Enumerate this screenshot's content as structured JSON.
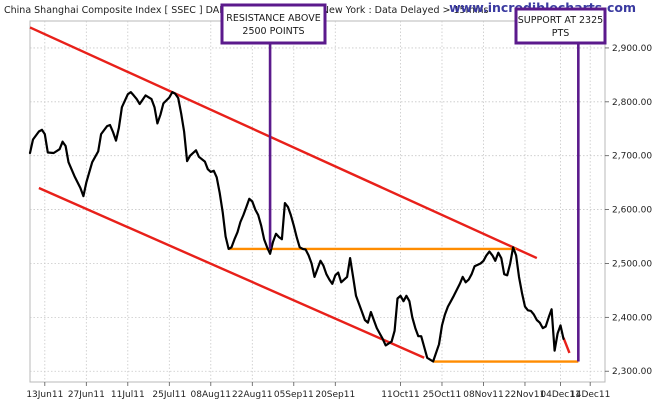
{
  "header": {
    "title": "China Shanghai Composite Index [ SSEC ] DAILY:02Dec2011 18:30 New York : Data Delayed > 15mins",
    "watermark": "www.incrediblecharts.com"
  },
  "annotations": {
    "resistance_line1": "RESISTANCE ABOVE",
    "resistance_line2": "2500 POINTS",
    "support_line1": "SUPPORT AT 2325",
    "support_line2": "PTS"
  },
  "colors": {
    "price": "#000000",
    "trendline": "#e8201a",
    "level": "#ff8c00",
    "annotation": "#5b1a8c",
    "grid": "#c8c8c8",
    "watermark": "#3a3aa0"
  },
  "chart_data": {
    "type": "line",
    "title": "China Shanghai Composite Index [ SSEC ] DAILY:02Dec2011 18:30 New York : Data Delayed > 15mins",
    "xlabel": "",
    "ylabel": "",
    "ylim": [
      2280,
      2950
    ],
    "y_ticks": [
      2300,
      2400,
      2500,
      2600,
      2700,
      2800,
      2900
    ],
    "y_tick_labels": [
      "2,300.00",
      "2,400.00",
      "2,500.00",
      "2,600.00",
      "2,700.00",
      "2,800.00",
      "2,900.00"
    ],
    "x_range": [
      "2011-06-08",
      "2011-12-19"
    ],
    "x_ticks": [
      "2011-06-13",
      "2011-06-27",
      "2011-07-11",
      "2011-07-25",
      "2011-08-08",
      "2011-08-22",
      "2011-09-05",
      "2011-09-19",
      "2011-10-11",
      "2011-10-25",
      "2011-11-08",
      "2011-11-22",
      "2011-12-04",
      "2011-12-14"
    ],
    "x_tick_labels": [
      "13Jun11",
      "27Jun11",
      "11Jul11",
      "25Jul11",
      "08Aug11",
      "22Aug11",
      "05Sep11",
      "20Sep11",
      "11Oct11",
      "25Oct11",
      "08Nov11",
      "22Nov11",
      "04Dec11",
      "14Dec11"
    ],
    "grid": true,
    "series": [
      {
        "points": [
          [
            "2011-06-08",
            2705
          ],
          [
            "2011-06-09",
            2730
          ],
          [
            "2011-06-11",
            2745
          ],
          [
            "2011-06-12",
            2748
          ],
          [
            "2011-06-13",
            2740
          ],
          [
            "2011-06-14",
            2706
          ],
          [
            "2011-06-16",
            2705
          ],
          [
            "2011-06-18",
            2712
          ],
          [
            "2011-06-19",
            2726
          ],
          [
            "2011-06-20",
            2718
          ],
          [
            "2011-06-21",
            2688
          ],
          [
            "2011-06-23",
            2662
          ],
          [
            "2011-06-25",
            2640
          ],
          [
            "2011-06-26",
            2625
          ],
          [
            "2011-06-27",
            2650
          ],
          [
            "2011-06-29",
            2688
          ],
          [
            "2011-07-01",
            2708
          ],
          [
            "2011-07-02",
            2740
          ],
          [
            "2011-07-04",
            2755
          ],
          [
            "2011-07-05",
            2757
          ],
          [
            "2011-07-06",
            2744
          ],
          [
            "2011-07-07",
            2728
          ],
          [
            "2011-07-08",
            2752
          ],
          [
            "2011-07-09",
            2790
          ],
          [
            "2011-07-11",
            2814
          ],
          [
            "2011-07-12",
            2818
          ],
          [
            "2011-07-13",
            2812
          ],
          [
            "2011-07-14",
            2805
          ],
          [
            "2011-07-15",
            2796
          ],
          [
            "2011-07-16",
            2804
          ],
          [
            "2011-07-17",
            2812
          ],
          [
            "2011-07-19",
            2805
          ],
          [
            "2011-07-20",
            2790
          ],
          [
            "2011-07-21",
            2760
          ],
          [
            "2011-07-22",
            2776
          ],
          [
            "2011-07-23",
            2797
          ],
          [
            "2011-07-25",
            2808
          ],
          [
            "2011-07-26",
            2818
          ],
          [
            "2011-07-27",
            2815
          ],
          [
            "2011-07-28",
            2807
          ],
          [
            "2011-07-29",
            2778
          ],
          [
            "2011-07-30",
            2745
          ],
          [
            "2011-07-31",
            2690
          ],
          [
            "2011-08-01",
            2700
          ],
          [
            "2011-08-03",
            2710
          ],
          [
            "2011-08-04",
            2698
          ],
          [
            "2011-08-06",
            2689
          ],
          [
            "2011-08-07",
            2675
          ],
          [
            "2011-08-08",
            2670
          ],
          [
            "2011-08-09",
            2672
          ],
          [
            "2011-08-10",
            2660
          ],
          [
            "2011-08-11",
            2631
          ],
          [
            "2011-08-12",
            2595
          ],
          [
            "2011-08-13",
            2550
          ],
          [
            "2011-08-14",
            2527
          ],
          [
            "2011-08-15",
            2530
          ],
          [
            "2011-08-16",
            2545
          ],
          [
            "2011-08-17",
            2558
          ],
          [
            "2011-08-18",
            2577
          ],
          [
            "2011-08-19",
            2590
          ],
          [
            "2011-08-20",
            2605
          ],
          [
            "2011-08-21",
            2620
          ],
          [
            "2011-08-22",
            2615
          ],
          [
            "2011-08-23",
            2600
          ],
          [
            "2011-08-24",
            2590
          ],
          [
            "2011-08-25",
            2570
          ],
          [
            "2011-08-26",
            2545
          ],
          [
            "2011-08-27",
            2530
          ],
          [
            "2011-08-28",
            2518
          ],
          [
            "2011-08-29",
            2540
          ],
          [
            "2011-08-30",
            2555
          ],
          [
            "2011-08-31",
            2549
          ],
          [
            "2011-09-01",
            2545
          ],
          [
            "2011-09-02",
            2612
          ],
          [
            "2011-09-03",
            2605
          ],
          [
            "2011-09-04",
            2590
          ],
          [
            "2011-09-05",
            2570
          ],
          [
            "2011-09-06",
            2548
          ],
          [
            "2011-09-07",
            2530
          ],
          [
            "2011-09-08",
            2527
          ],
          [
            "2011-09-09",
            2526
          ],
          [
            "2011-09-10",
            2515
          ],
          [
            "2011-09-11",
            2500
          ],
          [
            "2011-09-12",
            2475
          ],
          [
            "2011-09-13",
            2490
          ],
          [
            "2011-09-14",
            2505
          ],
          [
            "2011-09-15",
            2496
          ],
          [
            "2011-09-16",
            2480
          ],
          [
            "2011-09-17",
            2470
          ],
          [
            "2011-09-18",
            2462
          ],
          [
            "2011-09-19",
            2478
          ],
          [
            "2011-09-20",
            2483
          ],
          [
            "2011-09-21",
            2465
          ],
          [
            "2011-09-22",
            2470
          ],
          [
            "2011-09-23",
            2475
          ],
          [
            "2011-09-24",
            2510
          ],
          [
            "2011-09-25",
            2475
          ],
          [
            "2011-09-26",
            2440
          ],
          [
            "2011-09-27",
            2425
          ],
          [
            "2011-09-28",
            2410
          ],
          [
            "2011-09-29",
            2395
          ],
          [
            "2011-09-30",
            2390
          ],
          [
            "2011-10-01",
            2410
          ],
          [
            "2011-10-02",
            2395
          ],
          [
            "2011-10-03",
            2380
          ],
          [
            "2011-10-05",
            2360
          ],
          [
            "2011-10-06",
            2348
          ],
          [
            "2011-10-08",
            2355
          ],
          [
            "2011-10-09",
            2375
          ],
          [
            "2011-10-10",
            2435
          ],
          [
            "2011-10-11",
            2440
          ],
          [
            "2011-10-12",
            2430
          ],
          [
            "2011-10-13",
            2440
          ],
          [
            "2011-10-14",
            2430
          ],
          [
            "2011-10-15",
            2400
          ],
          [
            "2011-10-16",
            2380
          ],
          [
            "2011-10-17",
            2365
          ],
          [
            "2011-10-18",
            2365
          ],
          [
            "2011-10-19",
            2345
          ],
          [
            "2011-10-20",
            2325
          ],
          [
            "2011-10-22",
            2318
          ],
          [
            "2011-10-24",
            2350
          ],
          [
            "2011-10-25",
            2385
          ],
          [
            "2011-10-26",
            2405
          ],
          [
            "2011-10-27",
            2420
          ],
          [
            "2011-10-28",
            2430
          ],
          [
            "2011-10-29",
            2440
          ],
          [
            "2011-10-31",
            2462
          ],
          [
            "2011-11-01",
            2475
          ],
          [
            "2011-11-02",
            2465
          ],
          [
            "2011-11-03",
            2470
          ],
          [
            "2011-11-04",
            2480
          ],
          [
            "2011-11-05",
            2495
          ],
          [
            "2011-11-07",
            2500
          ],
          [
            "2011-11-08",
            2505
          ],
          [
            "2011-11-09",
            2515
          ],
          [
            "2011-11-10",
            2522
          ],
          [
            "2011-11-11",
            2515
          ],
          [
            "2011-11-12",
            2505
          ],
          [
            "2011-11-13",
            2520
          ],
          [
            "2011-11-14",
            2510
          ],
          [
            "2011-11-15",
            2480
          ],
          [
            "2011-11-16",
            2478
          ],
          [
            "2011-11-17",
            2500
          ],
          [
            "2011-11-18",
            2530
          ],
          [
            "2011-11-19",
            2515
          ],
          [
            "2011-11-20",
            2475
          ],
          [
            "2011-11-21",
            2445
          ],
          [
            "2011-11-22",
            2420
          ],
          [
            "2011-11-23",
            2413
          ],
          [
            "2011-11-24",
            2412
          ],
          [
            "2011-11-25",
            2405
          ],
          [
            "2011-11-26",
            2395
          ],
          [
            "2011-11-27",
            2390
          ],
          [
            "2011-11-28",
            2380
          ],
          [
            "2011-11-29",
            2383
          ],
          [
            "2011-11-30",
            2400
          ],
          [
            "2011-12-01",
            2415
          ],
          [
            "2011-12-02",
            2338
          ],
          [
            "2011-12-03",
            2370
          ],
          [
            "2011-12-04",
            2385
          ],
          [
            "2011-12-05",
            2360
          ]
        ]
      }
    ],
    "trendlines": [
      {
        "from": [
          "2011-06-08",
          2938
        ],
        "to": [
          "2011-11-26",
          2510
        ]
      },
      {
        "from": [
          "2011-06-11",
          2640
        ],
        "to": [
          "2011-10-19",
          2325
        ]
      },
      {
        "from": [
          "2011-12-05",
          2362
        ],
        "to": [
          "2011-12-07",
          2334
        ]
      }
    ],
    "levels": [
      {
        "y": 2527,
        "from": "2011-08-14",
        "to": "2011-11-19"
      },
      {
        "y": 2318,
        "from": "2011-10-22",
        "to": "2011-12-10"
      }
    ],
    "annotations": [
      {
        "text": "RESISTANCE ABOVE 2500 POINTS",
        "x": "2011-08-28",
        "y_from": 2527
      },
      {
        "text": "SUPPORT AT 2325 PTS",
        "x": "2011-12-10",
        "y_from": 2318
      }
    ]
  }
}
